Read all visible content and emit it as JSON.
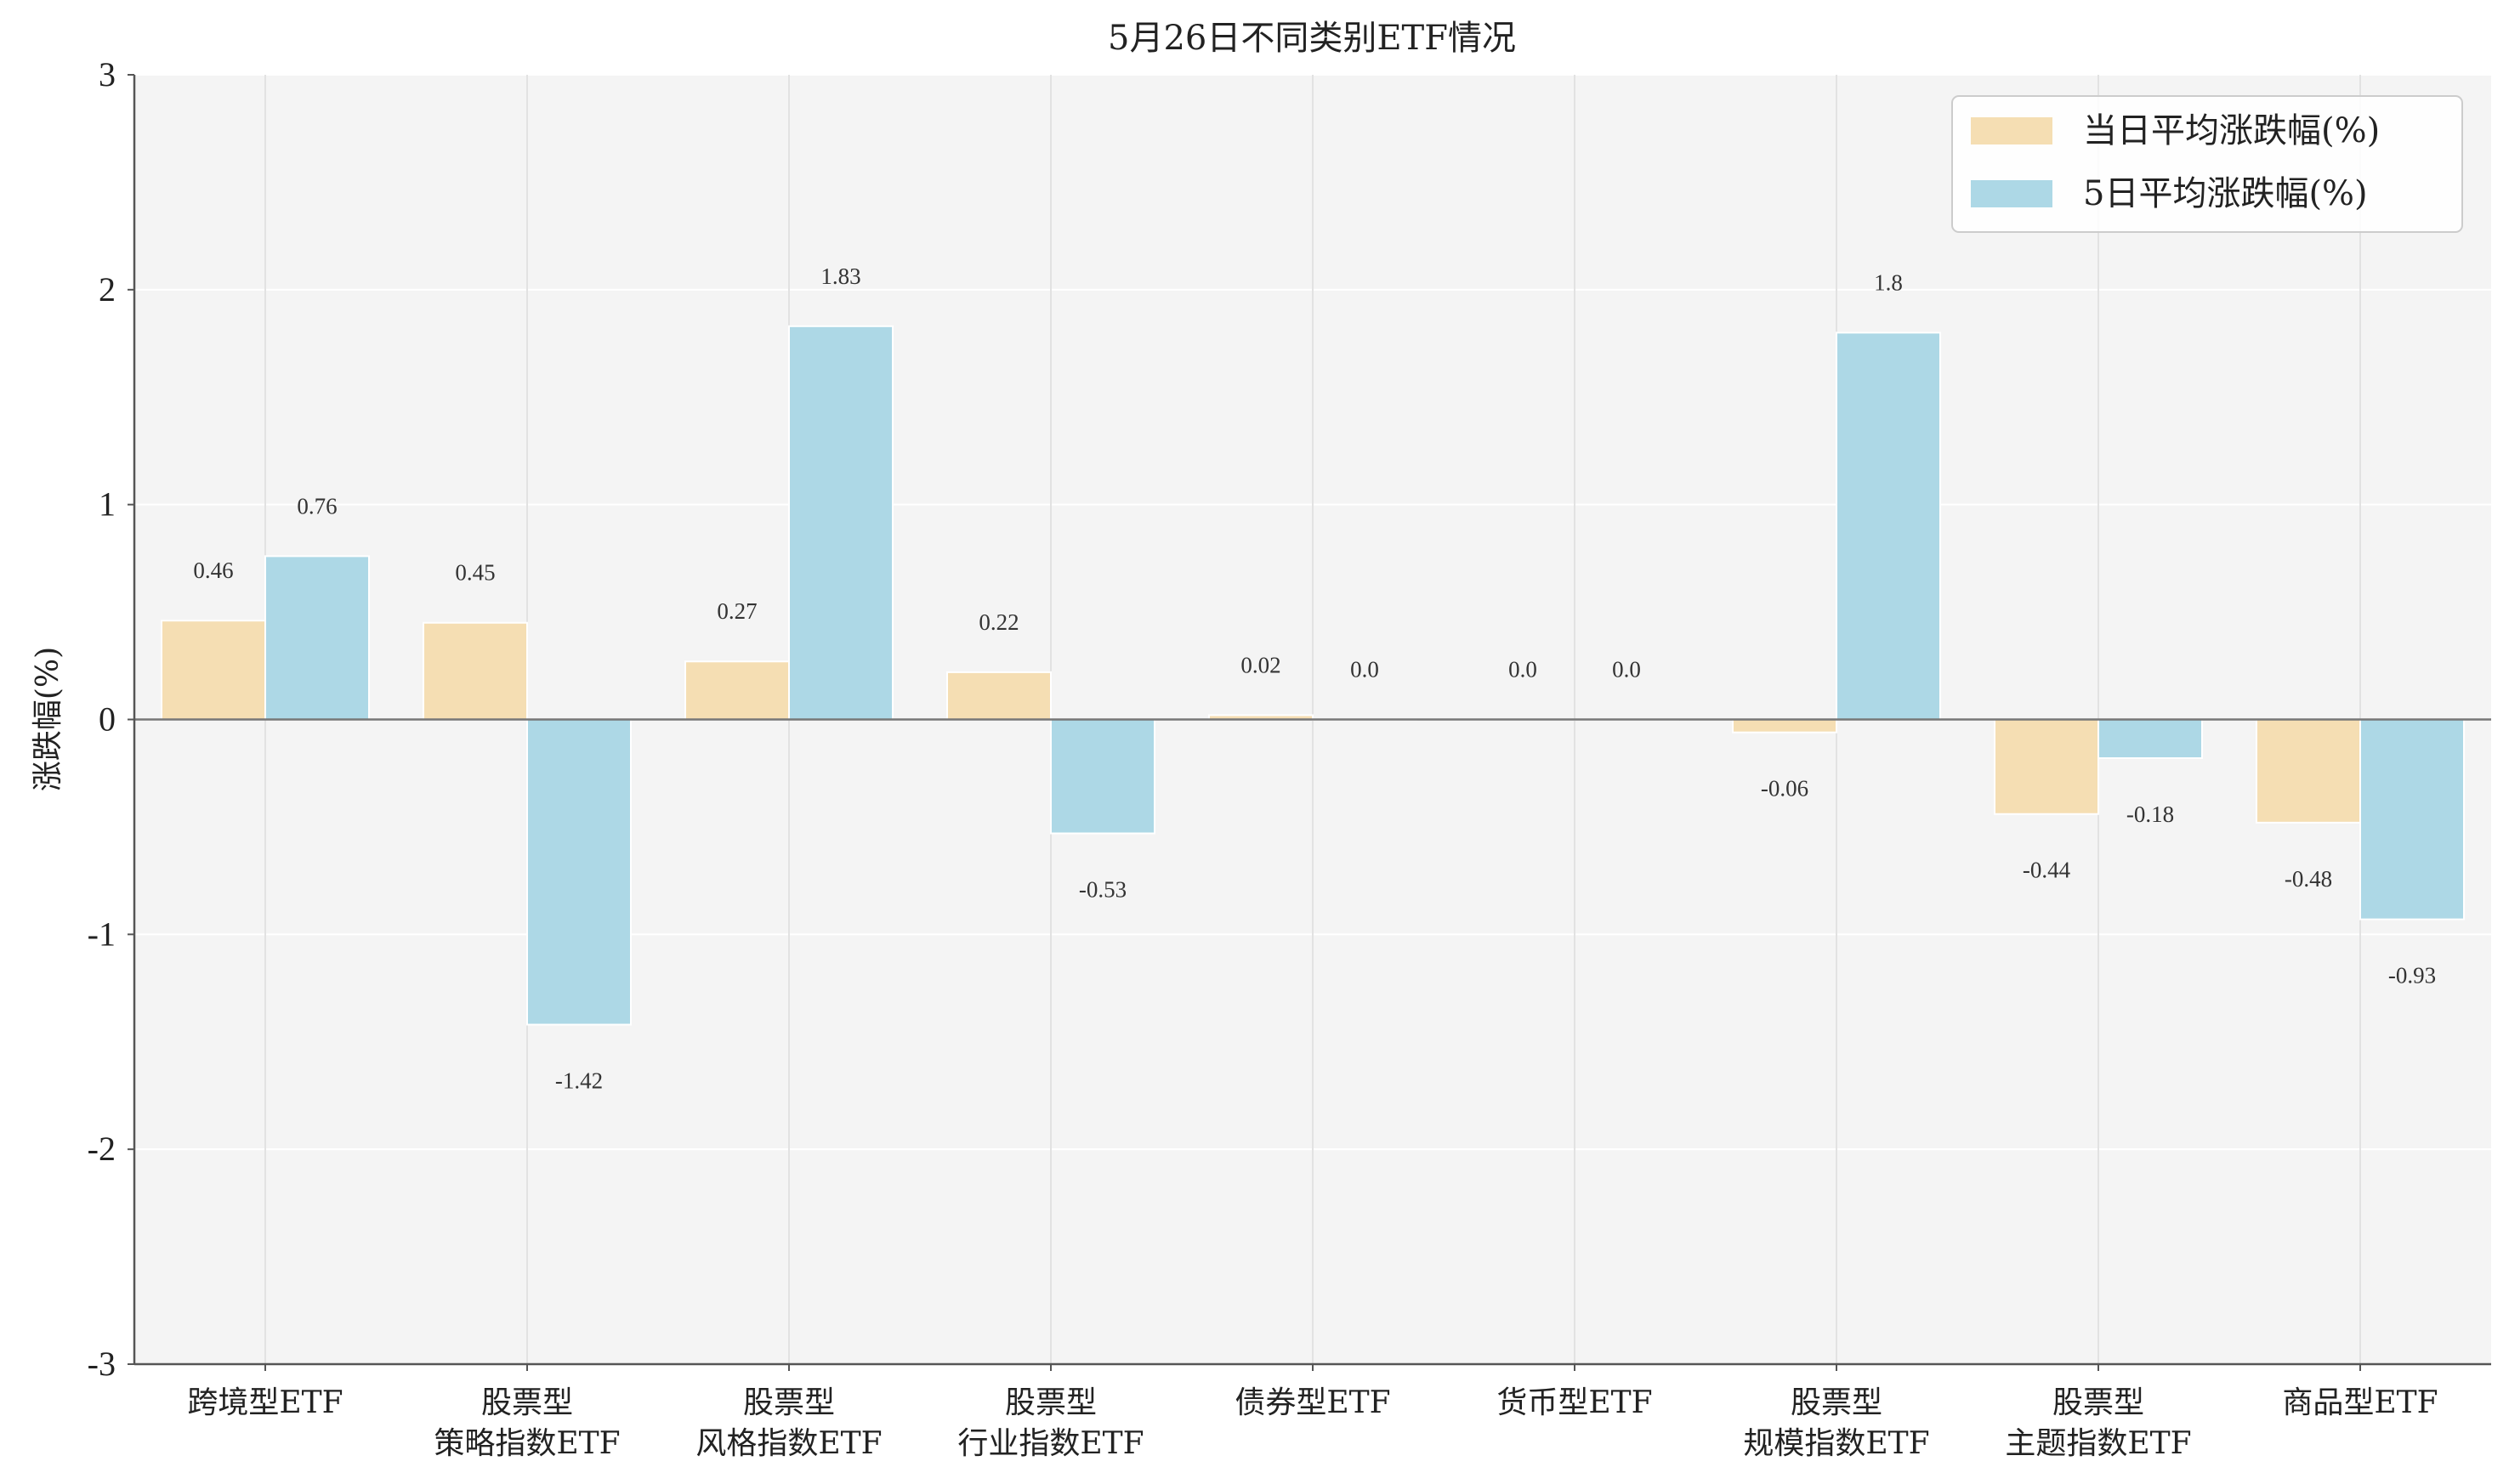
{
  "chart_data": {
    "type": "bar",
    "title": "5月26日不同类别ETF情况",
    "ylabel": "涨跌幅(%)",
    "xlabel": "",
    "ylim": [
      -3,
      3
    ],
    "yticks": [
      3,
      2,
      1,
      0,
      -1,
      -2,
      -3
    ],
    "grid": true,
    "legend_position": "top-right",
    "categories": [
      [
        "跨境型ETF"
      ],
      [
        "股票型",
        "策略指数ETF"
      ],
      [
        "股票型",
        "风格指数ETF"
      ],
      [
        "股票型",
        "行业指数ETF"
      ],
      [
        "债券型ETF"
      ],
      [
        "货币型ETF"
      ],
      [
        "股票型",
        "规模指数ETF"
      ],
      [
        "股票型",
        "主题指数ETF"
      ],
      [
        "商品型ETF"
      ]
    ],
    "series": [
      {
        "name": "当日平均涨跌幅(%)",
        "color": "#f5deb3",
        "values": [
          0.46,
          0.45,
          0.27,
          0.22,
          0.02,
          0.0,
          -0.06,
          -0.44,
          -0.48
        ],
        "labels": [
          "0.46",
          "0.45",
          "0.27",
          "0.22",
          "0.02",
          "0.0",
          "-0.06",
          "-0.44",
          "-0.48"
        ]
      },
      {
        "name": "5日平均涨跌幅(%)",
        "color": "#add8e6",
        "values": [
          0.76,
          -1.42,
          1.83,
          -0.53,
          0.0,
          0.0,
          1.8,
          -0.18,
          -0.93
        ],
        "labels": [
          "0.76",
          "-1.42",
          "1.83",
          "-0.53",
          "0.0",
          "0.0",
          "1.8",
          "-0.18",
          "-0.93"
        ]
      }
    ]
  }
}
